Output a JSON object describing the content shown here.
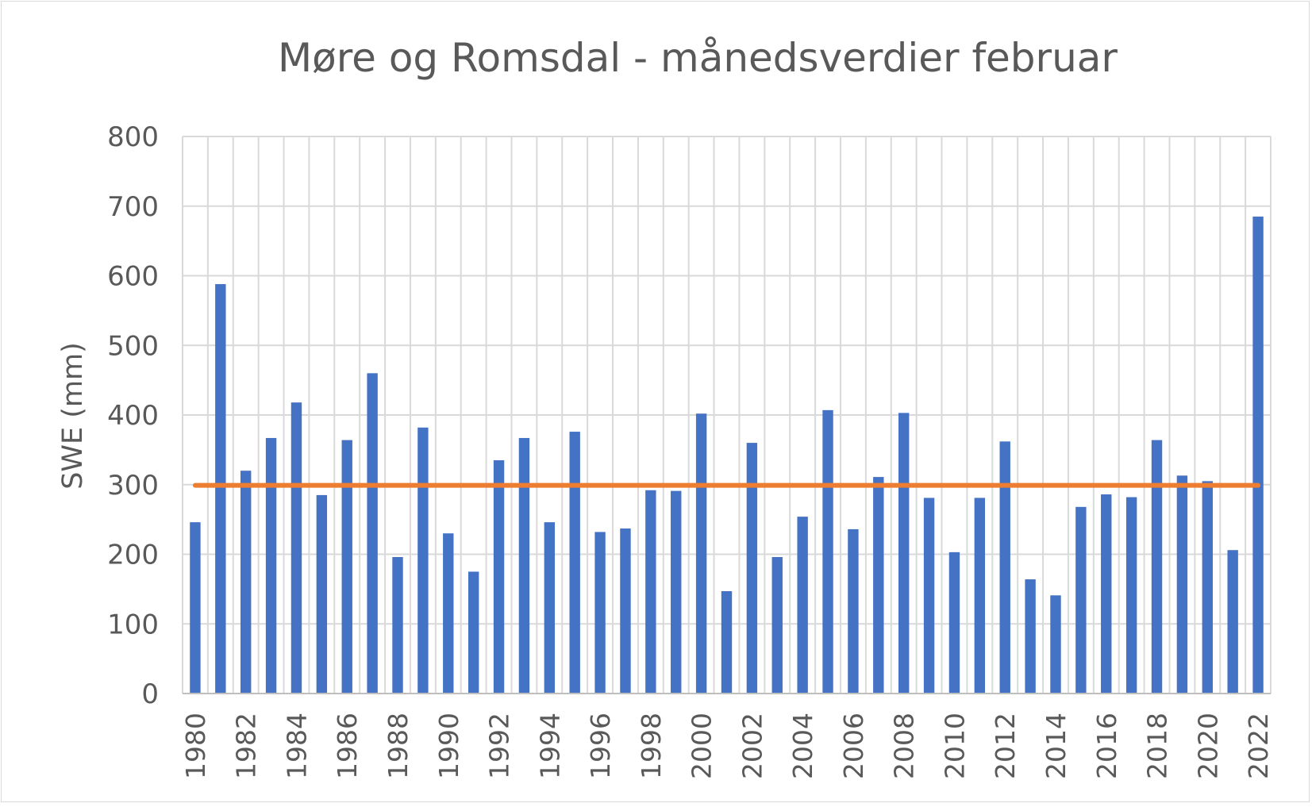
{
  "chart_data": {
    "type": "bar",
    "title": "Møre og Romsdal - månedsverdier februar",
    "xlabel": "",
    "ylabel": "SWE (mm)",
    "ylim": [
      0,
      800
    ],
    "yticks": [
      "0",
      "100",
      "200",
      "300",
      "400",
      "500",
      "600",
      "700",
      "800"
    ],
    "grid": true,
    "legend": "none",
    "categories": [
      "1980",
      "1981",
      "1982",
      "1983",
      "1984",
      "1985",
      "1986",
      "1987",
      "1988",
      "1989",
      "1990",
      "1991",
      "1992",
      "1993",
      "1994",
      "1995",
      "1996",
      "1997",
      "1998",
      "1999",
      "2000",
      "2001",
      "2002",
      "2003",
      "2004",
      "2005",
      "2006",
      "2007",
      "2008",
      "2009",
      "2010",
      "2011",
      "2012",
      "2013",
      "2014",
      "2015",
      "2016",
      "2017",
      "2018",
      "2019",
      "2020",
      "2021",
      "2022"
    ],
    "xtick_labels": [
      "1980",
      "",
      "1982",
      "",
      "1984",
      "",
      "1986",
      "",
      "1988",
      "",
      "1990",
      "",
      "1992",
      "",
      "1994",
      "",
      "1996",
      "",
      "1998",
      "",
      "2000",
      "",
      "2002",
      "",
      "2004",
      "",
      "2006",
      "",
      "2008",
      "",
      "2010",
      "",
      "2012",
      "",
      "2014",
      "",
      "2016",
      "",
      "2018",
      "",
      "2020",
      "",
      "2022"
    ],
    "series": [
      {
        "type": "bar",
        "color": "#4472c4",
        "values": [
          246,
          588,
          320,
          367,
          418,
          285,
          364,
          460,
          196,
          382,
          230,
          175,
          335,
          367,
          246,
          376,
          232,
          237,
          292,
          291,
          402,
          147,
          360,
          196,
          254,
          407,
          236,
          311,
          403,
          281,
          203,
          281,
          362,
          164,
          141,
          268,
          286,
          282,
          364,
          313,
          305,
          206,
          685
        ]
      },
      {
        "type": "line",
        "color": "#ed7d31",
        "values": [
          299,
          299,
          299,
          299,
          299,
          299,
          299,
          299,
          299,
          299,
          299,
          299,
          299,
          299,
          299,
          299,
          299,
          299,
          299,
          299,
          299,
          299,
          299,
          299,
          299,
          299,
          299,
          299,
          299,
          299,
          299,
          299,
          299,
          299,
          299,
          299,
          299,
          299,
          299,
          299,
          299,
          299,
          299
        ]
      }
    ]
  }
}
